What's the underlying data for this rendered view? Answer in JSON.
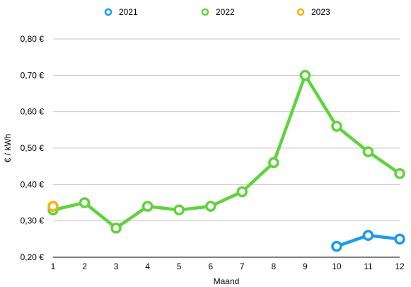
{
  "chart_data": {
    "type": "line",
    "title": "",
    "xlabel": "Maand",
    "ylabel": "€ / kWh",
    "x": [
      1,
      2,
      3,
      4,
      5,
      6,
      7,
      8,
      9,
      10,
      11,
      12
    ],
    "y_ticks": [
      "0,20 €",
      "0,30 €",
      "0,40 €",
      "0,50 €",
      "0,60 €",
      "0,70 €",
      "0,80 €"
    ],
    "ylim": [
      0.2,
      0.8
    ],
    "xlim": [
      1,
      12
    ],
    "grid": "horizontal",
    "legend_position": "top",
    "series": [
      {
        "name": "2021",
        "color": "#1a9bec",
        "points": [
          [
            10,
            0.23
          ],
          [
            11,
            0.26
          ],
          [
            12,
            0.25
          ]
        ]
      },
      {
        "name": "2022",
        "color": "#5fd33b",
        "points": [
          [
            1,
            0.33
          ],
          [
            2,
            0.35
          ],
          [
            3,
            0.28
          ],
          [
            4,
            0.34
          ],
          [
            5,
            0.33
          ],
          [
            6,
            0.34
          ],
          [
            7,
            0.38
          ],
          [
            8,
            0.46
          ],
          [
            9,
            0.7
          ],
          [
            10,
            0.56
          ],
          [
            11,
            0.49
          ],
          [
            12,
            0.43
          ]
        ]
      },
      {
        "name": "2023",
        "color": "#f5b30a",
        "points": [
          [
            1,
            0.34
          ]
        ]
      }
    ]
  }
}
